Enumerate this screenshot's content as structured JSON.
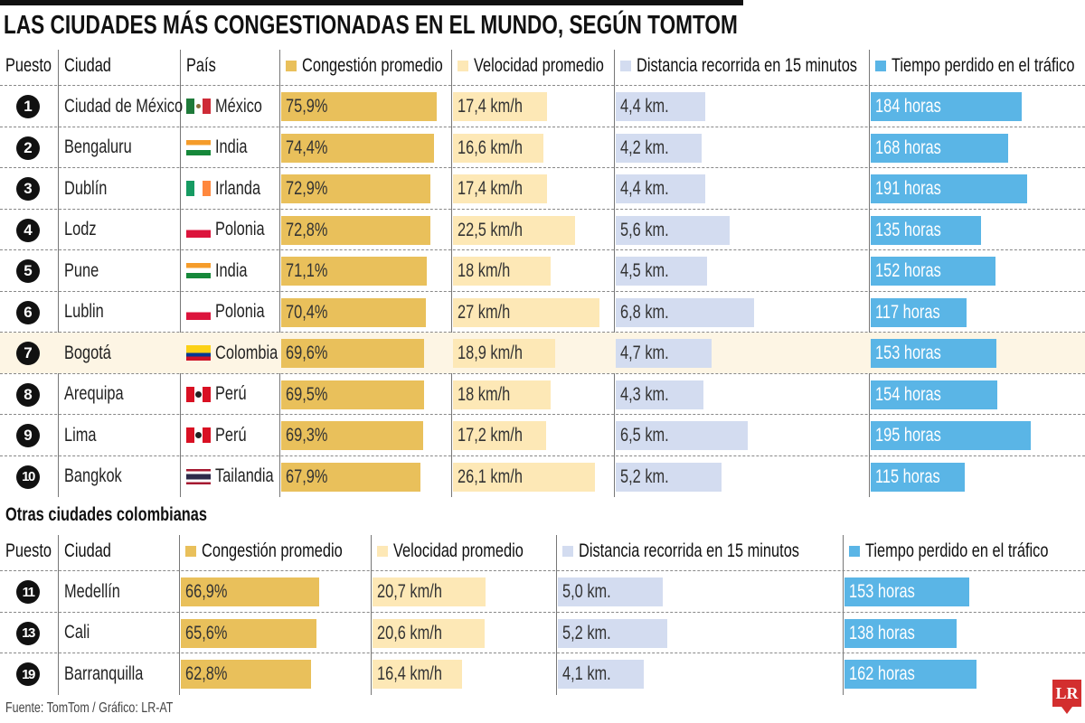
{
  "title": "LAS CIUDADES MÁS CONGESTIONADAS EN EL MUNDO, SEGÚN TOMTOM",
  "subtitle": "Otras ciudades colombianas",
  "source": "Fuente: TomTom / Gráfico: LR-AT",
  "logo": "LR",
  "headers": {
    "rank": "Puesto",
    "city": "Ciudad",
    "country": "País",
    "congestion": "Congestión promedio",
    "speed": "Velocidad promedio",
    "distance": "Distancia recorrida en 15 minutos",
    "time": "Tiempo perdido en el tráfico"
  },
  "colors": {
    "congestion": "#e9c05b",
    "speed": "#fde8b6",
    "distance": "#d3dcf0",
    "time": "#5ab5e6",
    "highlight": "#fdf5e4"
  },
  "chart_data": {
    "type": "table",
    "highlight_row": "Bogotá",
    "main": [
      {
        "rank": "1",
        "city": "Ciudad de México",
        "country": "México",
        "flag": "mexico",
        "congestion": 75.9,
        "congestion_label": "75,9%",
        "speed": 17.4,
        "speed_label": "17,4 km/h",
        "distance": 4.4,
        "distance_label": "4,4 km.",
        "time": 184,
        "time_label": "184 horas"
      },
      {
        "rank": "2",
        "city": "Bengaluru",
        "country": "India",
        "flag": "india",
        "congestion": 74.4,
        "congestion_label": "74,4%",
        "speed": 16.6,
        "speed_label": "16,6 km/h",
        "distance": 4.2,
        "distance_label": "4,2 km.",
        "time": 168,
        "time_label": "168 horas"
      },
      {
        "rank": "3",
        "city": "Dublín",
        "country": "Irlanda",
        "flag": "ireland",
        "congestion": 72.9,
        "congestion_label": "72,9%",
        "speed": 17.4,
        "speed_label": "17,4 km/h",
        "distance": 4.4,
        "distance_label": "4,4 km.",
        "time": 191,
        "time_label": "191 horas"
      },
      {
        "rank": "4",
        "city": "Lodz",
        "country": "Polonia",
        "flag": "poland",
        "congestion": 72.8,
        "congestion_label": "72,8%",
        "speed": 22.5,
        "speed_label": "22,5 km/h",
        "distance": 5.6,
        "distance_label": "5,6 km.",
        "time": 135,
        "time_label": "135 horas"
      },
      {
        "rank": "5",
        "city": "Pune",
        "country": "India",
        "flag": "india",
        "congestion": 71.1,
        "congestion_label": "71,1%",
        "speed": 18,
        "speed_label": "18 km/h",
        "distance": 4.5,
        "distance_label": "4,5 km.",
        "time": 152,
        "time_label": "152 horas"
      },
      {
        "rank": "6",
        "city": "Lublin",
        "country": "Polonia",
        "flag": "poland",
        "congestion": 70.4,
        "congestion_label": "70,4%",
        "speed": 27,
        "speed_label": "27 km/h",
        "distance": 6.8,
        "distance_label": "6,8 km.",
        "time": 117,
        "time_label": "117 horas"
      },
      {
        "rank": "7",
        "city": "Bogotá",
        "country": "Colombia",
        "flag": "colombia",
        "congestion": 69.6,
        "congestion_label": "69,6%",
        "speed": 18.9,
        "speed_label": "18,9 km/h",
        "distance": 4.7,
        "distance_label": "4,7 km.",
        "time": 153,
        "time_label": "153 horas"
      },
      {
        "rank": "8",
        "city": "Arequipa",
        "country": "Perú",
        "flag": "peru",
        "congestion": 69.5,
        "congestion_label": "69,5%",
        "speed": 18,
        "speed_label": "18 km/h",
        "distance": 4.3,
        "distance_label": "4,3 km.",
        "time": 154,
        "time_label": "154 horas"
      },
      {
        "rank": "9",
        "city": "Lima",
        "country": "Perú",
        "flag": "peru",
        "congestion": 69.3,
        "congestion_label": "69,3%",
        "speed": 17.2,
        "speed_label": "17,2 km/h",
        "distance": 6.5,
        "distance_label": "6,5 km.",
        "time": 195,
        "time_label": "195 horas"
      },
      {
        "rank": "10",
        "city": "Bangkok",
        "country": "Tailandia",
        "flag": "thailand",
        "congestion": 67.9,
        "congestion_label": "67,9%",
        "speed": 26.1,
        "speed_label": "26,1 km/h",
        "distance": 5.2,
        "distance_label": "5,2 km.",
        "time": 115,
        "time_label": "115 horas"
      }
    ],
    "colombia": [
      {
        "rank": "11",
        "city": "Medellín",
        "congestion": 66.9,
        "congestion_label": "66,9%",
        "speed": 20.7,
        "speed_label": "20,7 km/h",
        "distance": 5.0,
        "distance_label": "5,0 km.",
        "time": 153,
        "time_label": "153 horas"
      },
      {
        "rank": "13",
        "city": "Cali",
        "congestion": 65.6,
        "congestion_label": "65,6%",
        "speed": 20.6,
        "speed_label": "20,6 km/h",
        "distance": 5.2,
        "distance_label": "5,2 km.",
        "time": 138,
        "time_label": "138 horas"
      },
      {
        "rank": "19",
        "city": "Barranquilla",
        "congestion": 62.8,
        "congestion_label": "62,8%",
        "speed": 16.4,
        "speed_label": "16,4 km/h",
        "distance": 4.1,
        "distance_label": "4,1 km.",
        "time": 162,
        "time_label": "162 horas"
      }
    ]
  }
}
